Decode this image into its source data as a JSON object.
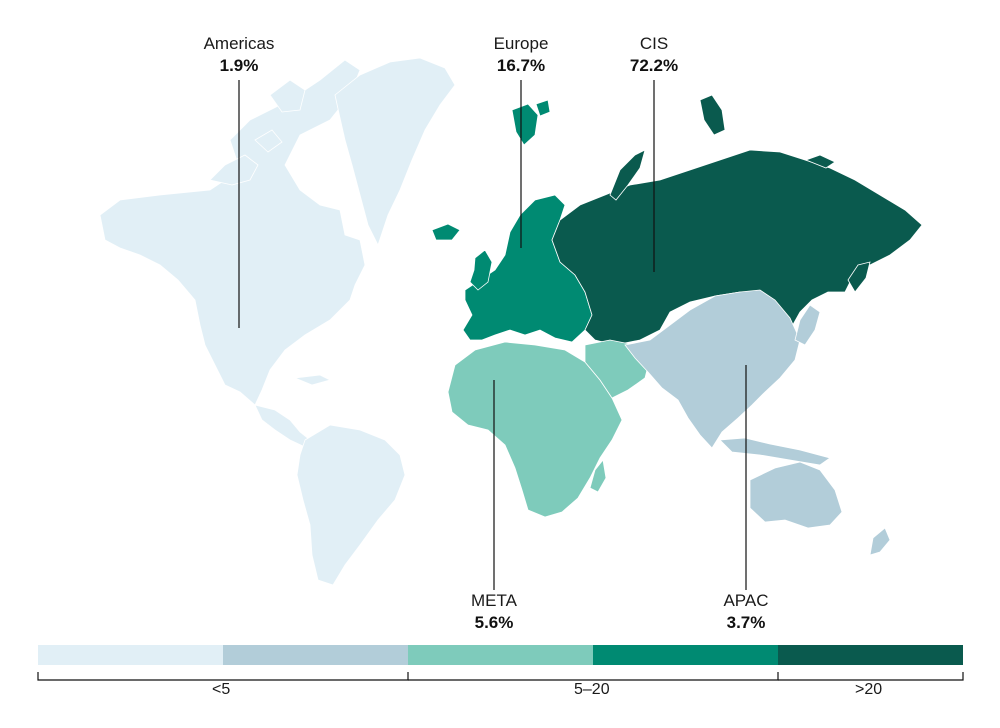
{
  "colors": {
    "band_1": "#e1eff6",
    "band_2": "#b2cdd9",
    "band_3": "#7ecbbb",
    "band_4": "#008a72",
    "band_5": "#0a5a4e",
    "border": "#ffffff",
    "leader": "#111111"
  },
  "regions": [
    {
      "key": "americas",
      "name": "Americas",
      "value": "1.9%",
      "band": "band_1"
    },
    {
      "key": "europe",
      "name": "Europe",
      "value": "16.7%",
      "band": "band_4"
    },
    {
      "key": "cis",
      "name": "CIS",
      "value": "72.2%",
      "band": "band_5"
    },
    {
      "key": "meta",
      "name": "META",
      "value": "5.6%",
      "band": "band_3"
    },
    {
      "key": "apac",
      "name": "APAC",
      "value": "3.7%",
      "band": "band_2"
    }
  ],
  "legend": {
    "bands": [
      "band_1",
      "band_2",
      "band_3",
      "band_4",
      "band_5"
    ],
    "labels": [
      "<5",
      "5–20",
      ">20"
    ]
  }
}
